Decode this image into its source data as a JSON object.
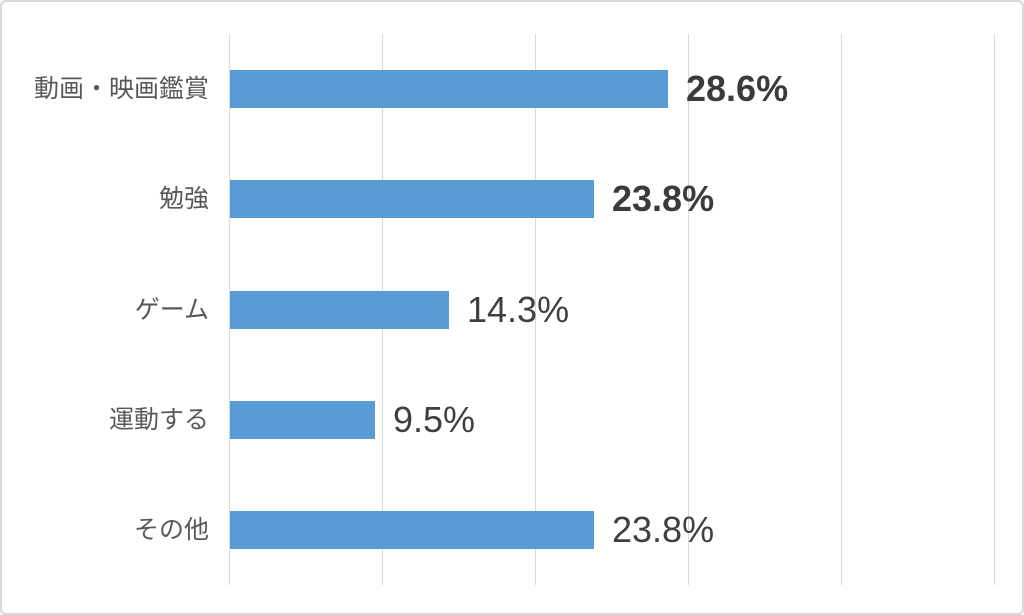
{
  "chart_data": {
    "type": "bar",
    "orientation": "horizontal",
    "title": "",
    "xlabel": "",
    "ylabel": "",
    "categories": [
      "動画・映画鑑賞",
      "勉強",
      "ゲーム",
      "運動する",
      "その他"
    ],
    "values": [
      28.6,
      23.8,
      14.3,
      9.5,
      23.8
    ],
    "value_labels": [
      "28.6%",
      "23.8%",
      "14.3%",
      "9.5%",
      "23.8%"
    ],
    "value_label_bold": [
      true,
      true,
      false,
      false,
      false
    ],
    "xlim": [
      0,
      50
    ],
    "grid_step_percent": 10,
    "grid": "vertical-only",
    "axis_tick_labels_visible": false,
    "legend": "none",
    "colors": {
      "bar": "#5B9BD5",
      "gridline": "#D9D9D9",
      "category_label": "#595959",
      "value_label": "#404040",
      "frame_border": "#D9D9D9",
      "background": "#FFFFFF"
    }
  }
}
